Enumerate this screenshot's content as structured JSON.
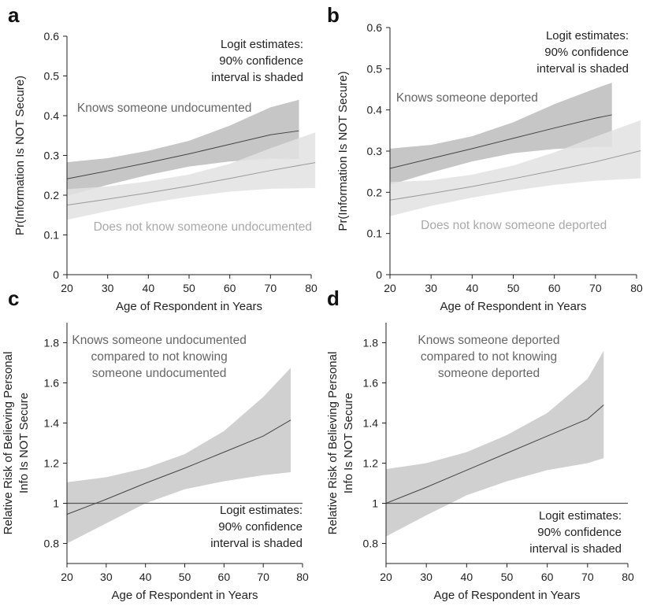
{
  "chart_data": [
    {
      "panel": "a",
      "type": "line",
      "xlabel": "Age of Respondent in Years",
      "ylabel": "Pr(Information Is NOT Secure)",
      "xlim": [
        20,
        80
      ],
      "ylim": [
        0,
        0.6
      ],
      "xticks": [
        20,
        30,
        40,
        50,
        60,
        70,
        80
      ],
      "yticks": [
        0,
        0.1,
        0.2,
        0.3,
        0.4,
        0.5,
        0.6
      ],
      "ytick_labels": [
        "0",
        "0.1",
        "0.2",
        "0.3",
        "0.4",
        "0.5",
        "0.6"
      ],
      "note": [
        "Logit estimates:",
        "90% confidence",
        "interval is shaded"
      ],
      "note_anchor": "top-right",
      "reference_line": null,
      "series": [
        {
          "name": "Knows someone undocumented",
          "style": "dark",
          "x": [
            20,
            30,
            40,
            50,
            60,
            70,
            77
          ],
          "y": [
            0.241,
            0.261,
            0.282,
            0.304,
            0.328,
            0.352,
            0.362
          ],
          "ci_lower": [
            0.198,
            0.226,
            0.251,
            0.272,
            0.285,
            0.292,
            0.291
          ],
          "ci_upper": [
            0.283,
            0.293,
            0.312,
            0.337,
            0.375,
            0.421,
            0.44
          ]
        },
        {
          "name": "Does not know someone undocumented",
          "style": "light",
          "x": [
            20,
            30,
            40,
            50,
            60,
            70,
            81
          ],
          "y": [
            0.175,
            0.19,
            0.206,
            0.223,
            0.242,
            0.262,
            0.282
          ],
          "ci_lower": [
            0.138,
            0.16,
            0.18,
            0.196,
            0.209,
            0.216,
            0.218
          ],
          "ci_upper": [
            0.215,
            0.222,
            0.235,
            0.252,
            0.279,
            0.318,
            0.358
          ]
        }
      ],
      "labels": [
        {
          "text": "Knows someone undocumented",
          "x": 22.5,
          "y": 0.41,
          "style": "dark"
        },
        {
          "text": "Does not know someone undocumented",
          "x": 26.5,
          "y": 0.111,
          "style": "light"
        }
      ]
    },
    {
      "panel": "b",
      "type": "line",
      "xlabel": "Age of Respondent in Years",
      "ylabel": "Pr(Information Is NOT Secure)",
      "xlim": [
        20,
        80
      ],
      "ylim": [
        0,
        0.6
      ],
      "xticks": [
        20,
        30,
        40,
        50,
        60,
        70,
        80
      ],
      "yticks": [
        0,
        0.1,
        0.2,
        0.3,
        0.4,
        0.5,
        0.6
      ],
      "ytick_labels": [
        "0",
        "0.1",
        "0.2",
        "0.3",
        "0.4",
        "0.5",
        "0.6"
      ],
      "note": [
        "Logit estimates:",
        "90% confidence",
        "interval is shaded"
      ],
      "note_anchor": "top-right",
      "reference_line": null,
      "series": [
        {
          "name": "Knows someone deported",
          "style": "dark",
          "x": [
            20,
            30,
            40,
            50,
            60,
            70,
            74
          ],
          "y": [
            0.258,
            0.282,
            0.306,
            0.331,
            0.356,
            0.38,
            0.388
          ],
          "ci_lower": [
            0.218,
            0.248,
            0.275,
            0.295,
            0.305,
            0.31,
            0.31
          ],
          "ci_upper": [
            0.306,
            0.315,
            0.336,
            0.37,
            0.414,
            0.452,
            0.466
          ]
        },
        {
          "name": "Does not know someone deported",
          "style": "light",
          "x": [
            20,
            30,
            40,
            50,
            60,
            70,
            81
          ],
          "y": [
            0.181,
            0.197,
            0.214,
            0.233,
            0.253,
            0.274,
            0.301
          ],
          "ci_lower": [
            0.142,
            0.167,
            0.187,
            0.204,
            0.218,
            0.228,
            0.234
          ],
          "ci_upper": [
            0.225,
            0.229,
            0.243,
            0.265,
            0.297,
            0.335,
            0.375
          ]
        }
      ],
      "labels": [
        {
          "text": "Knows someone deported",
          "x": 21.5,
          "y": 0.42,
          "style": "dark"
        },
        {
          "text": "Does not know someone deported",
          "x": 27.5,
          "y": 0.111,
          "style": "light"
        }
      ]
    },
    {
      "panel": "c",
      "type": "line",
      "xlabel": "Age of Respondent in Years",
      "ylabel": "Relative Risk of Believing Personal|Info Is NOT Secure",
      "xlim": [
        20,
        80
      ],
      "ylim": [
        0.7,
        1.9
      ],
      "xticks": [
        20,
        30,
        40,
        50,
        60,
        70,
        80
      ],
      "yticks": [
        0.8,
        1,
        1.2,
        1.4,
        1.6,
        1.8
      ],
      "ytick_labels": [
        "0.8",
        "1",
        "1.2",
        "1.4",
        "1.6",
        "1.8"
      ],
      "note": [
        "Logit estimates:",
        "90% confidence",
        "interval is shaded"
      ],
      "note_anchor": "bottom-right",
      "reference_line": 1,
      "series": [
        {
          "name": "Relative risk",
          "style": "mid",
          "x": [
            20,
            30,
            40,
            50,
            60,
            70,
            77
          ],
          "y": [
            0.945,
            1.02,
            1.1,
            1.175,
            1.255,
            1.335,
            1.415
          ],
          "ci_lower": [
            0.8,
            0.9,
            1.0,
            1.07,
            1.11,
            1.14,
            1.155
          ],
          "ci_upper": [
            1.105,
            1.13,
            1.175,
            1.245,
            1.36,
            1.53,
            1.675
          ]
        }
      ],
      "labels": [
        {
          "text": "Knows someone undocumented|compared to not knowing|someone undocumented",
          "x": 43.5,
          "y": 1.795,
          "style": "dark",
          "align": "middle"
        }
      ]
    },
    {
      "panel": "d",
      "type": "line",
      "xlabel": "Age of Respondent in Years",
      "ylabel": "Relative Risk of Believing Personal|Info Is NOT Secure",
      "xlim": [
        20,
        80
      ],
      "ylim": [
        0.7,
        1.9
      ],
      "xticks": [
        20,
        30,
        40,
        50,
        60,
        70,
        80
      ],
      "yticks": [
        0.8,
        1,
        1.2,
        1.4,
        1.6,
        1.8
      ],
      "ytick_labels": [
        "0.8",
        "1",
        "1.2",
        "1.4",
        "1.6",
        "1.8"
      ],
      "note": [
        "Logit estimates:",
        "90% confidence",
        "interval is shaded"
      ],
      "note_anchor": "bottom-right",
      "reference_line": 1,
      "series": [
        {
          "name": "Relative risk",
          "style": "mid",
          "x": [
            20,
            30,
            40,
            50,
            60,
            70,
            74
          ],
          "y": [
            1.0,
            1.08,
            1.165,
            1.25,
            1.335,
            1.42,
            1.49
          ],
          "ci_lower": [
            0.835,
            0.94,
            1.04,
            1.11,
            1.165,
            1.2,
            1.225
          ],
          "ci_upper": [
            1.17,
            1.2,
            1.255,
            1.34,
            1.45,
            1.62,
            1.76
          ]
        }
      ],
      "labels": [
        {
          "text": "Knows someone deported|compared to not knowing|someone deported",
          "x": 45.5,
          "y": 1.795,
          "style": "dark",
          "align": "middle"
        }
      ]
    }
  ],
  "colors": {
    "dark_band": "#c6c6c6",
    "light_band": "#e2e2e2",
    "mid_band": "#d0d0d0",
    "line_dark": "#444444",
    "line_light": "#9a9a9a",
    "axis": "#222222"
  }
}
